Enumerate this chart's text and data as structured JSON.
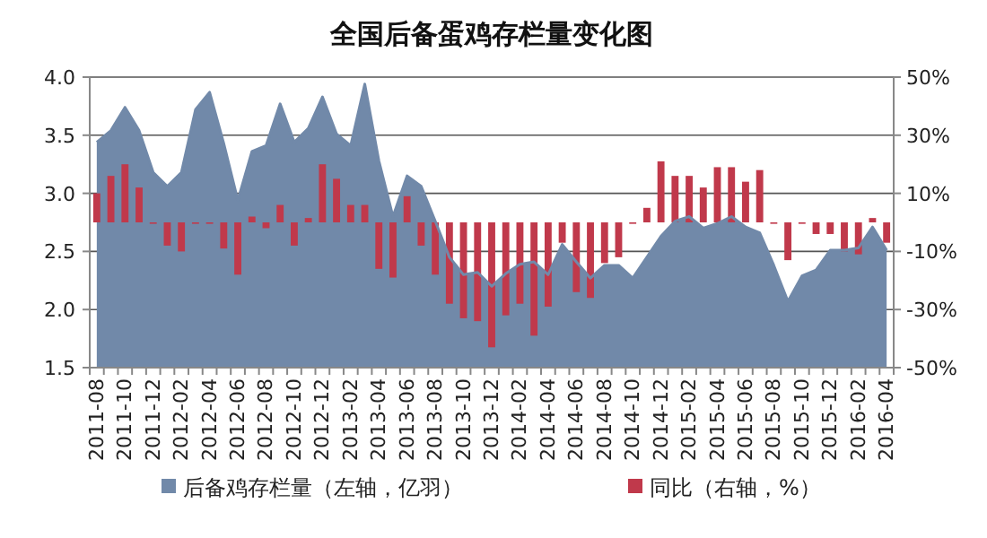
{
  "chart_data": {
    "type": "area",
    "title": "全国后备蛋鸡存栏量变化图",
    "categories": [
      "2011-08",
      null,
      "2011-10",
      null,
      "2011-12",
      null,
      "2012-02",
      null,
      "2012-04",
      null,
      "2012-06",
      null,
      "2012-08",
      null,
      "2012-10",
      null,
      "2012-12",
      null,
      "2013-02",
      null,
      "2013-04",
      null,
      "2013-06",
      null,
      "2013-08",
      null,
      "2013-10",
      null,
      "2013-12",
      null,
      "2014-02",
      null,
      "2014-04",
      null,
      "2014-06",
      null,
      "2014-08",
      null,
      "2014-10",
      null,
      "2014-12",
      null,
      "2015-02",
      null,
      "2015-04",
      null,
      "2015-06",
      null,
      "2015-08",
      null,
      "2015-10",
      null,
      "2015-12",
      null,
      "2016-02",
      null,
      "2016-04"
    ],
    "series": [
      {
        "name": "后备鸡存栏量（左轴，亿羽）",
        "color": "#7189a9",
        "values": [
          3.44,
          3.54,
          3.74,
          3.54,
          3.18,
          3.06,
          3.18,
          3.72,
          3.87,
          3.43,
          2.94,
          3.36,
          3.41,
          3.77,
          3.44,
          3.56,
          3.83,
          3.51,
          3.41,
          3.94,
          3.28,
          2.8,
          3.15,
          3.06,
          2.76,
          2.45,
          2.3,
          2.32,
          2.2,
          2.31,
          2.39,
          2.41,
          2.3,
          2.56,
          2.41,
          2.27,
          2.38,
          2.38,
          2.27,
          2.45,
          2.63,
          2.76,
          2.8,
          2.7,
          2.74,
          2.8,
          2.71,
          2.66,
          2.38,
          2.07,
          2.29,
          2.34,
          2.51,
          2.51,
          2.53,
          2.71,
          2.51
        ]
      },
      {
        "name": "同比（右轴，%）",
        "type": "bar",
        "axis": "y2",
        "color": "#c0394b",
        "values": [
          10,
          16,
          20,
          12,
          0,
          -8,
          -10,
          0,
          0,
          -9,
          -18,
          2,
          -2,
          6,
          -8,
          1.5,
          20,
          15,
          6,
          6,
          -16,
          -19,
          9,
          -8,
          -18,
          -28,
          -33,
          -34,
          -43,
          -32,
          -28,
          -39,
          -29,
          -7,
          -24,
          -26,
          -14,
          -12,
          -0.5,
          5,
          21,
          16,
          16,
          12,
          19,
          19,
          14,
          18,
          0,
          -13,
          -0.5,
          -4,
          -4,
          -10,
          -11,
          1.5,
          -7
        ]
      }
    ],
    "ylim": [
      1.5,
      4.0
    ],
    "yticks": [
      {
        "value": 1.5,
        "label": "1.5"
      },
      {
        "value": 2,
        "label": "2.0"
      },
      {
        "value": 2.5,
        "label": "2.5"
      },
      {
        "value": 3,
        "label": "3.0"
      },
      {
        "value": 3.5,
        "label": "3.5"
      },
      {
        "value": 4,
        "label": "4.0"
      }
    ],
    "y2lim": [
      -50,
      50
    ],
    "y2ticks": [
      {
        "value": -50,
        "label": "-50%"
      },
      {
        "value": -30,
        "label": "-30%"
      },
      {
        "value": -10,
        "label": "-10%"
      },
      {
        "value": 10,
        "label": "10%"
      },
      {
        "value": 30,
        "label": "30%"
      },
      {
        "value": 50,
        "label": "50%"
      }
    ],
    "grid": "y",
    "legend": "bottom"
  }
}
